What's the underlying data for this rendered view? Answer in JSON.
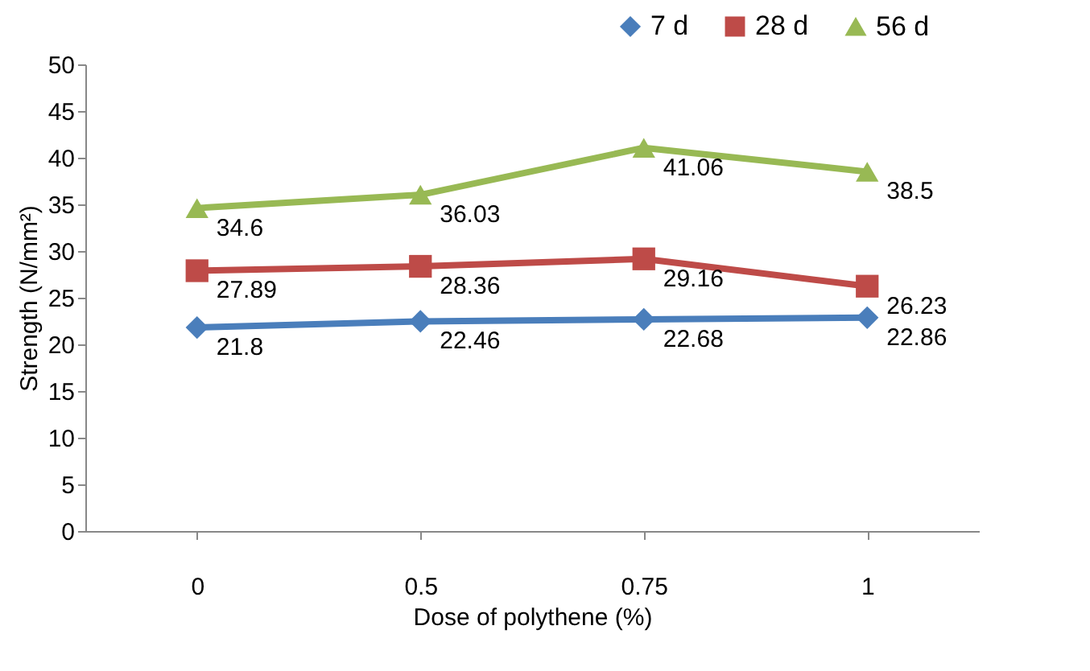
{
  "chart_data": {
    "type": "line",
    "xlabel": "Dose of polythene (%)",
    "ylabel": "Strength (N/mm²)",
    "categories": [
      "0",
      "0.5",
      "0.75",
      "1"
    ],
    "series": [
      {
        "name": "7 d",
        "color": "#4a7ebb",
        "marker": "diamond",
        "values": [
          21.8,
          22.46,
          22.68,
          22.86
        ]
      },
      {
        "name": "28 d",
        "color": "#be4b48",
        "marker": "square",
        "values": [
          27.89,
          28.36,
          29.16,
          26.23
        ]
      },
      {
        "name": "56 d",
        "color": "#98b954",
        "marker": "triangle",
        "values": [
          34.6,
          36.03,
          41.06,
          38.5
        ]
      }
    ],
    "ylim": [
      0,
      50
    ],
    "yticks": [
      0,
      5,
      10,
      15,
      20,
      25,
      30,
      35,
      40,
      45,
      50
    ],
    "data_labels": true,
    "grid": false,
    "legend": "top right"
  }
}
